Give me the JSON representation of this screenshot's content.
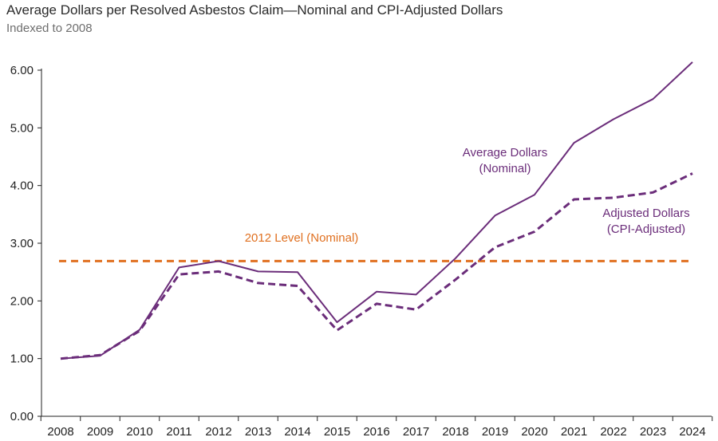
{
  "title": "Average Dollars per Resolved Asbestos Claim—Nominal and CPI-Adjusted Dollars",
  "subtitle": "Indexed to 2008",
  "colors": {
    "nominal": "#6b2d7a",
    "adjusted": "#6b2d7a",
    "reference": "#e07020",
    "axis": "#222222"
  },
  "chart_data": {
    "type": "line",
    "title": "Average Dollars per Resolved Asbestos Claim—Nominal and CPI-Adjusted Dollars",
    "subtitle": "Indexed to 2008",
    "xlabel": "",
    "ylabel": "",
    "ylim": [
      0,
      6
    ],
    "grid": false,
    "categories": [
      "2008",
      "2009",
      "2010",
      "2011",
      "2012",
      "2013",
      "2014",
      "2015",
      "2016",
      "2017",
      "2018",
      "2019",
      "2020",
      "2021",
      "2022",
      "2023",
      "2024"
    ],
    "y_ticks": [
      "0.00",
      "1.00",
      "2.00",
      "3.00",
      "4.00",
      "5.00",
      "6.00"
    ],
    "series": [
      {
        "name": "Average Dollars (Nominal)",
        "style": "solid",
        "values": [
          1.0,
          1.05,
          1.5,
          2.58,
          2.69,
          2.51,
          2.5,
          1.63,
          2.16,
          2.11,
          2.74,
          3.48,
          3.84,
          4.74,
          5.15,
          5.5,
          6.14
        ]
      },
      {
        "name": "Adjusted Dollars (CPI-Adjusted)",
        "style": "dashed",
        "values": [
          1.0,
          1.06,
          1.48,
          2.46,
          2.51,
          2.31,
          2.26,
          1.49,
          1.95,
          1.85,
          2.37,
          2.93,
          3.2,
          3.76,
          3.79,
          3.88,
          4.21
        ]
      }
    ],
    "reference_line": {
      "label": "2012 Level (Nominal)",
      "value": 2.69,
      "style": "dashed"
    },
    "annotations": {
      "nominal": [
        "Average Dollars",
        "(Nominal)"
      ],
      "adjusted": [
        "Adjusted Dollars",
        "(CPI-Adjusted)"
      ],
      "reference": "2012 Level (Nominal)"
    }
  }
}
